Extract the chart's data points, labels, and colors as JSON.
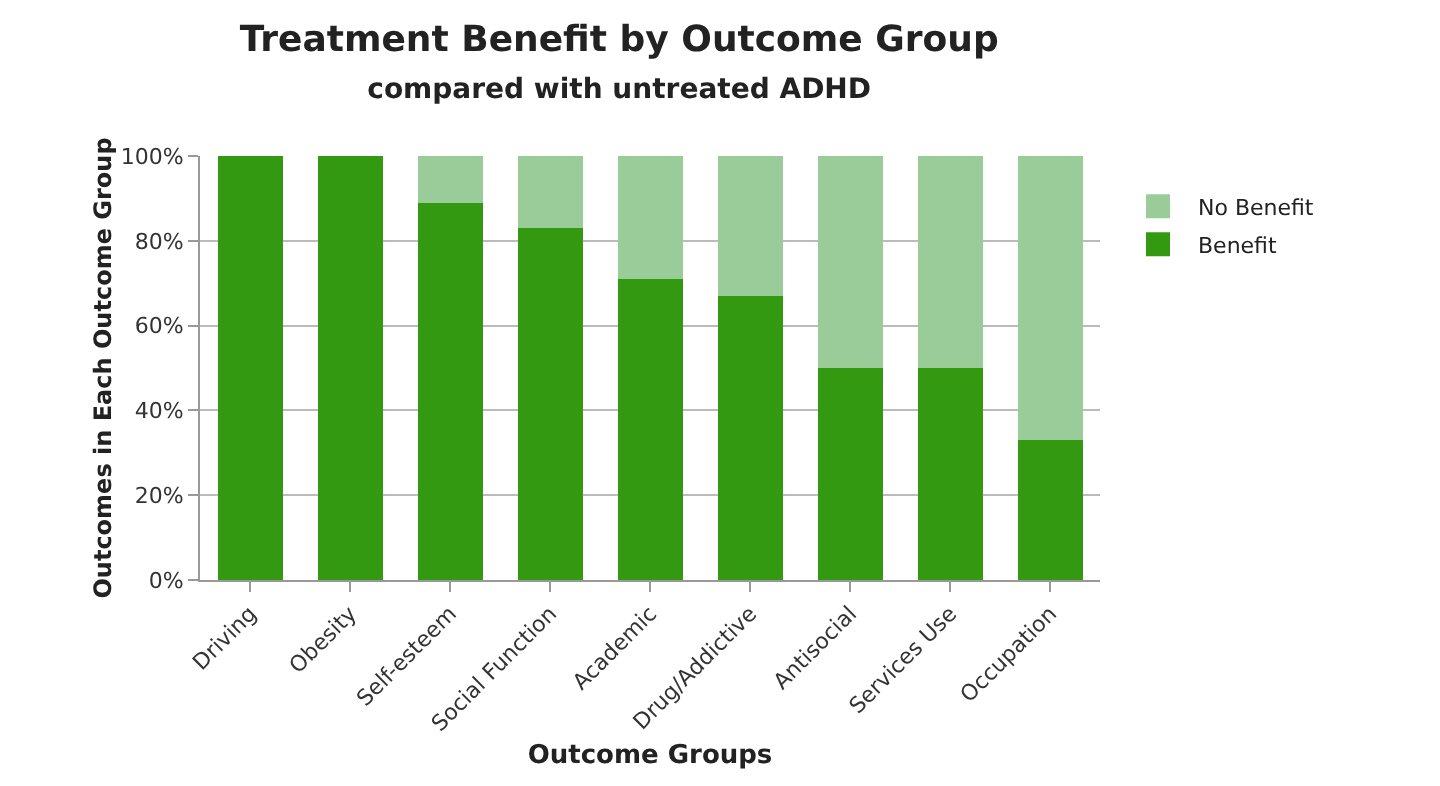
{
  "chart_data": {
    "type": "bar",
    "stacked": true,
    "title": "Treatment Benefit by Outcome Group",
    "subtitle": "compared with untreated ADHD",
    "xlabel": "Outcome Groups",
    "ylabel": "Outcomes in Each Outcome Group",
    "categories": [
      "Driving",
      "Obesity",
      "Self-esteem",
      "Social Function",
      "Academic",
      "Drug/Addictive",
      "Antisocial",
      "Services Use",
      "Occupation"
    ],
    "series": [
      {
        "name": "Benefit",
        "color": "#339911",
        "values": [
          100,
          100,
          89,
          83,
          71,
          67,
          50,
          50,
          33
        ]
      },
      {
        "name": "No Benefit",
        "color": "#99cc99",
        "values": [
          0,
          0,
          11,
          17,
          29,
          33,
          50,
          50,
          67
        ]
      }
    ],
    "ylim": [
      0,
      100
    ],
    "yticks": [
      {
        "value": 0,
        "label": "0%"
      },
      {
        "value": 20,
        "label": "20%"
      },
      {
        "value": 40,
        "label": "40%"
      },
      {
        "value": 60,
        "label": "60%"
      },
      {
        "value": 80,
        "label": "80%"
      },
      {
        "value": 100,
        "label": "100%"
      }
    ],
    "grid": "y",
    "legend": "right"
  }
}
